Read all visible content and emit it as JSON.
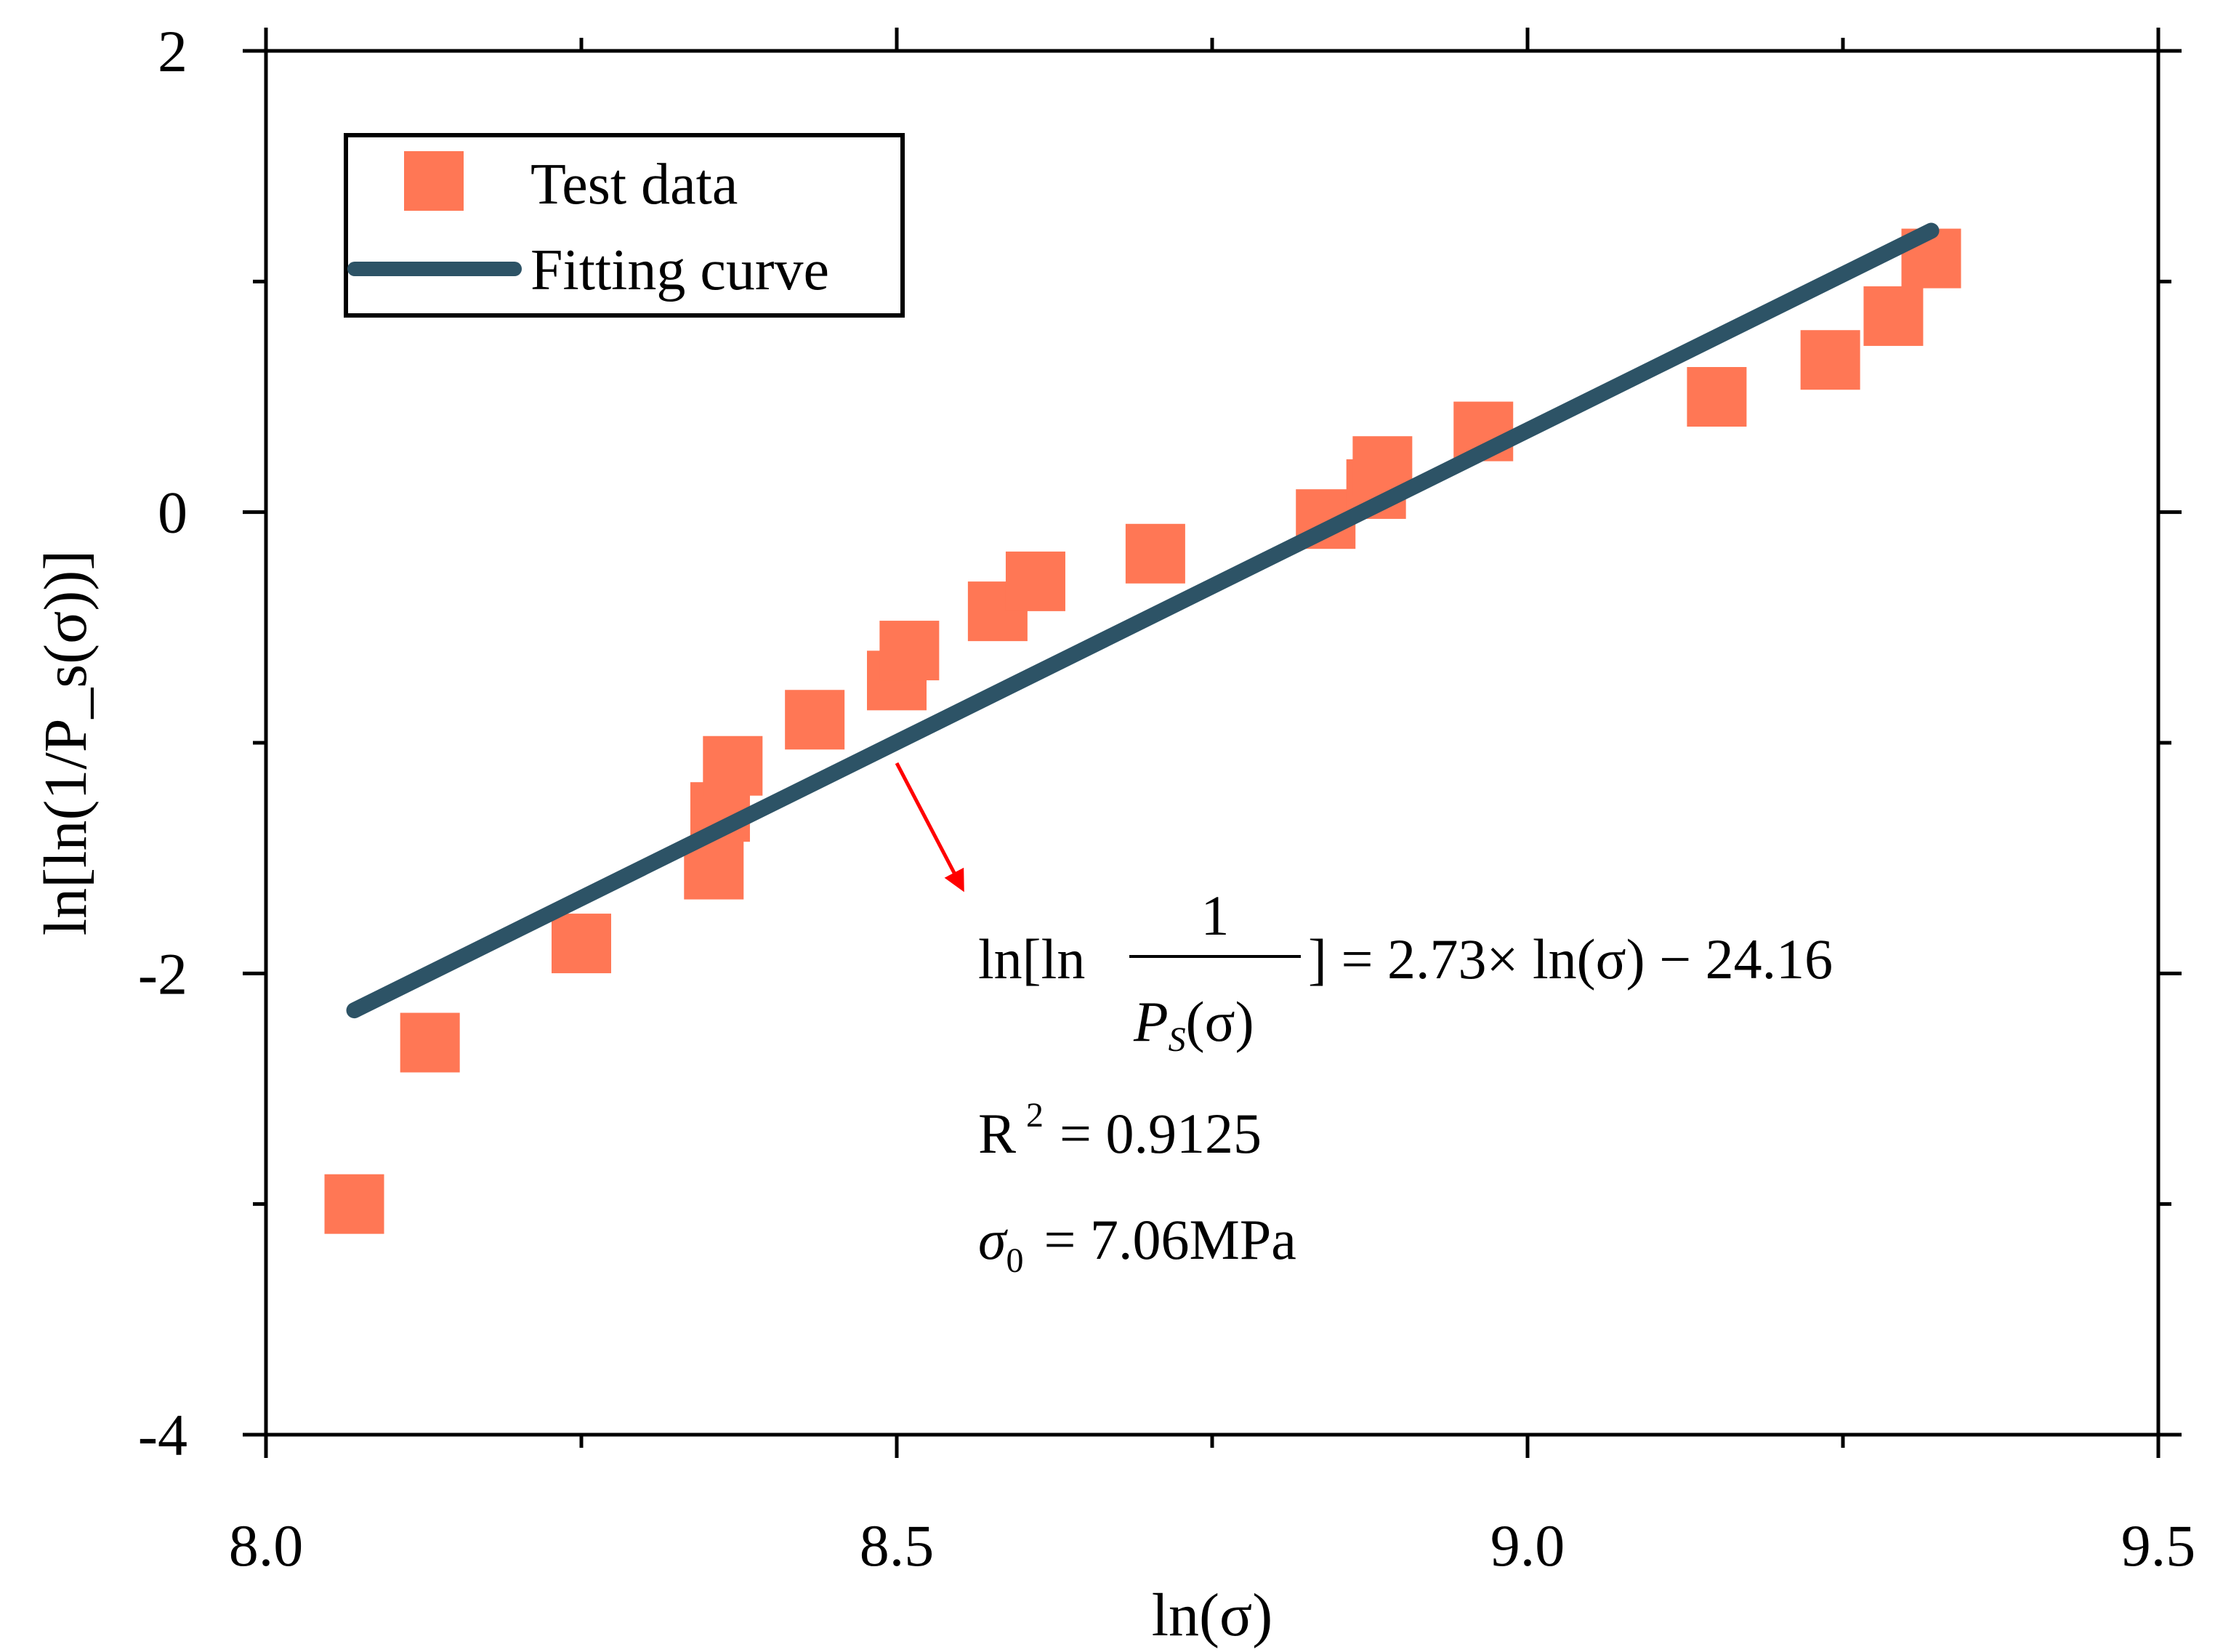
{
  "chart_data": {
    "type": "scatter",
    "xlabel": "ln(σ)",
    "ylabel": "ln[ln(1/P_s(σ))]",
    "xlim": [
      8.0,
      9.5
    ],
    "ylim": [
      -4,
      2
    ],
    "x_ticks": [
      "8.0",
      "8.5",
      "9.0",
      "9.5"
    ],
    "y_ticks": [
      "-4",
      "-2",
      "0",
      "2"
    ],
    "grid": false,
    "legend_position": "top-left",
    "colors": {
      "test_data": "#FF7755",
      "fitting_curve": "#2D5366",
      "arrow": "#FF0000",
      "axis": "#000000"
    },
    "series": [
      {
        "name": "Test data",
        "kind": "scatter",
        "x": [
          8.07,
          8.13,
          8.25,
          8.355,
          8.36,
          8.37,
          8.435,
          8.5,
          8.51,
          8.58,
          8.61,
          8.705,
          8.84,
          8.88,
          8.885,
          8.965,
          9.15,
          9.24,
          9.29,
          9.32
        ],
        "y": [
          -3.0,
          -2.3,
          -1.87,
          -1.55,
          -1.3,
          -1.1,
          -0.9,
          -0.73,
          -0.6,
          -0.43,
          -0.3,
          -0.18,
          -0.03,
          0.1,
          0.2,
          0.35,
          0.5,
          0.66,
          0.85,
          1.1
        ]
      },
      {
        "name": "Fitting curve",
        "kind": "line",
        "x": [
          8.07,
          9.32
        ],
        "y": [
          -2.16,
          1.22
        ]
      }
    ],
    "legend": {
      "test_label": "Test data",
      "fit_label": "Fitting curve"
    },
    "annotations": {
      "eq_prefix": "ln[ln",
      "eq_numerator": "1",
      "eq_den_p": "P",
      "eq_den_sub": "S",
      "eq_den_rest": "(σ)",
      "eq_rhs": "] = 2.73× ln(σ) − 24.16",
      "r2_label": "R",
      "r2_sup": "2",
      "r2_value": "= 0.9125",
      "sigma_symbol": "σ",
      "sigma_sub": "0",
      "sigma_value": "= 7.06MPa"
    }
  }
}
